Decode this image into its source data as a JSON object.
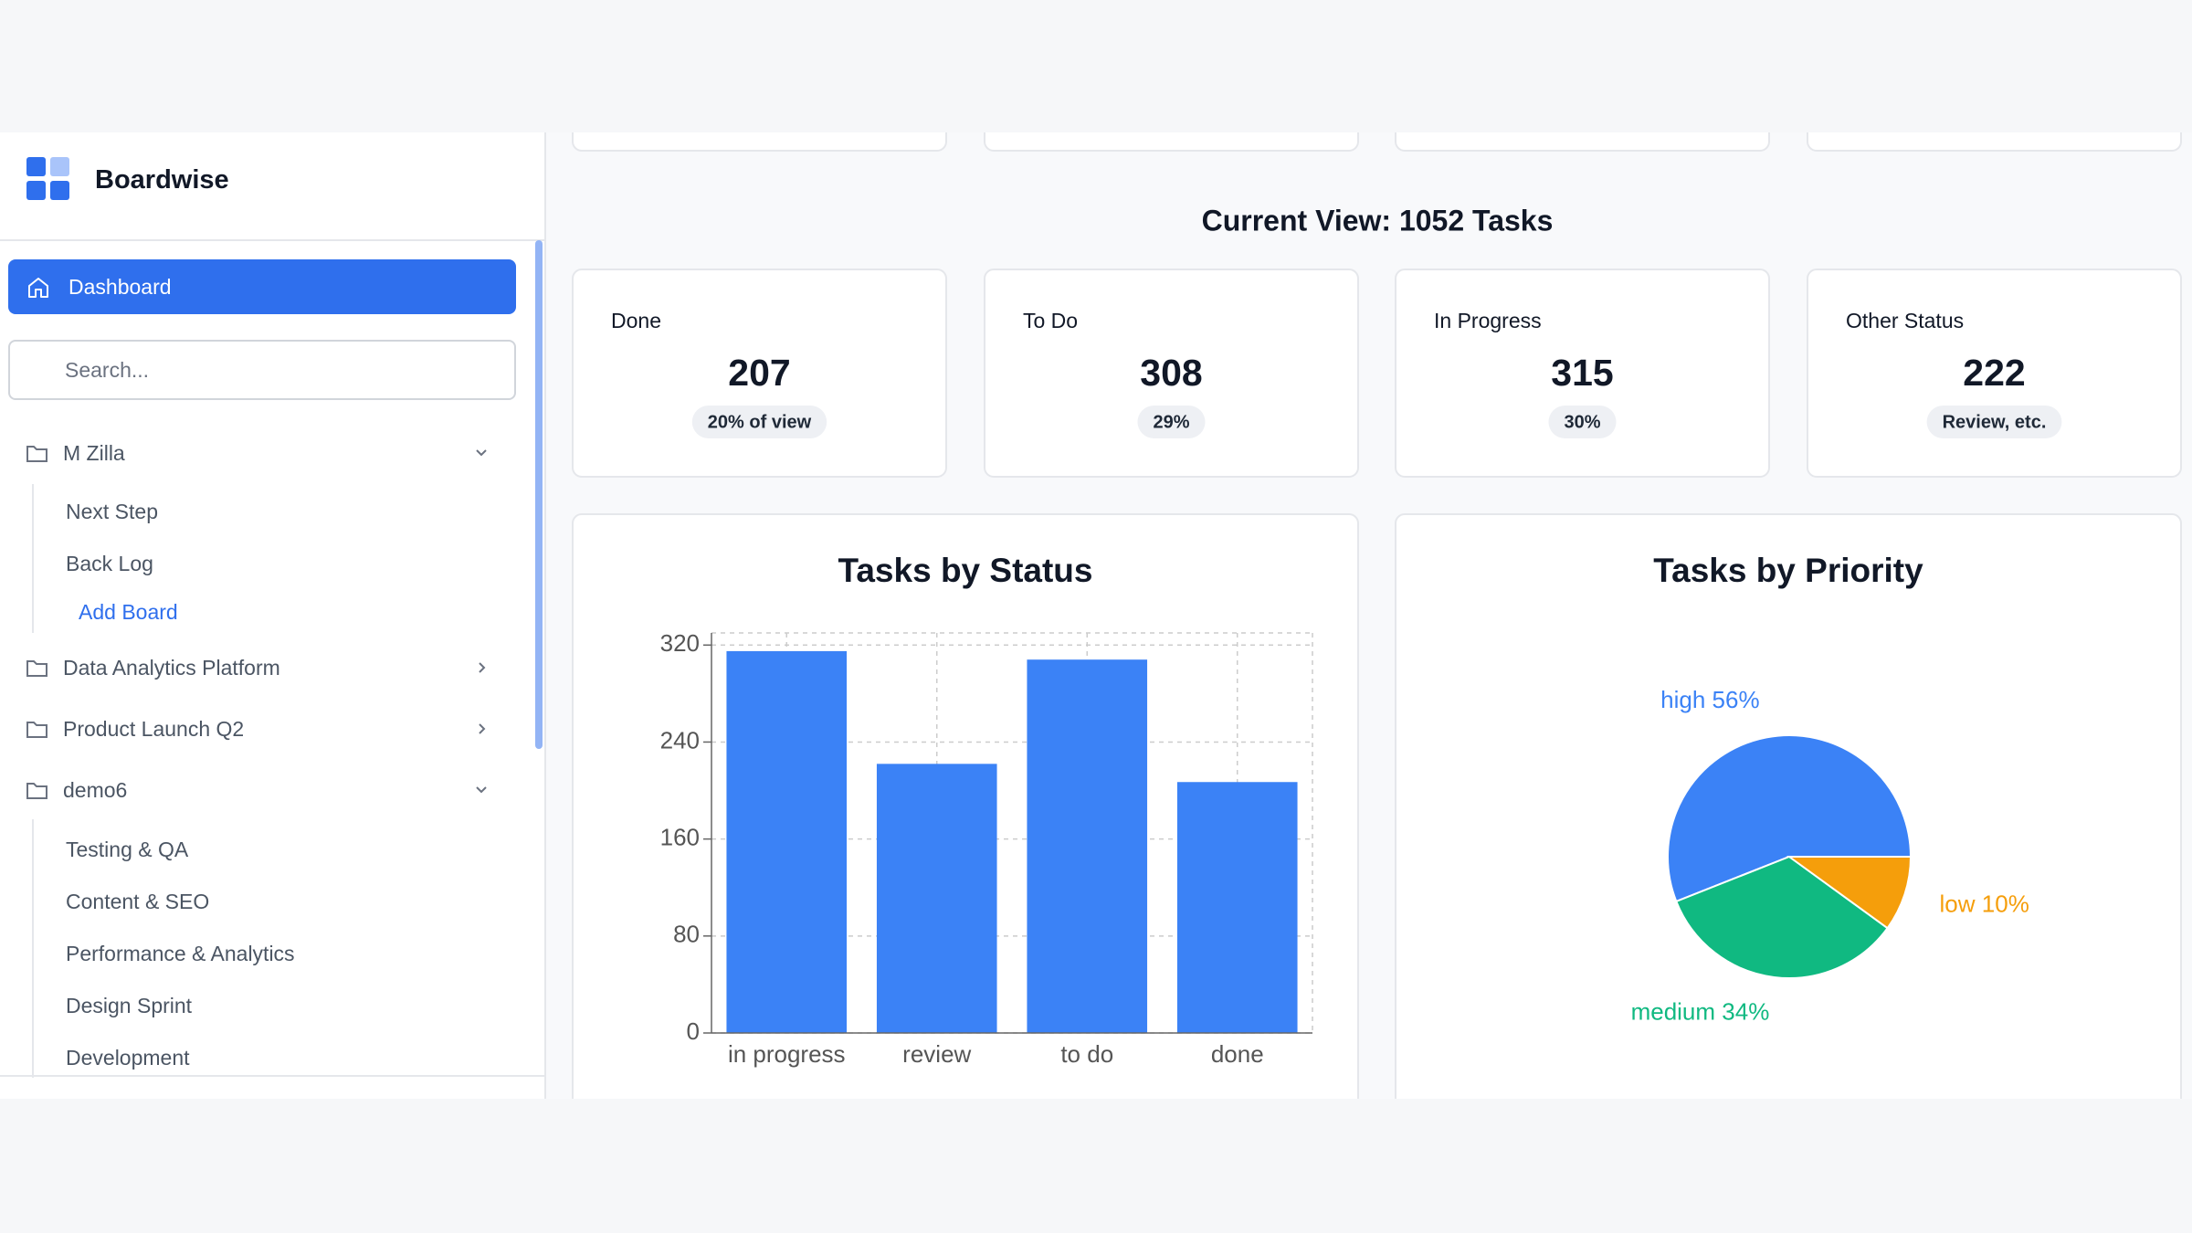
{
  "sidebar": {
    "brand": "Boardwise",
    "nav": "Dashboard",
    "search_placeholder": "Search...",
    "projects": [
      {
        "name": "M Zilla",
        "boards": [
          "Next Step",
          "Back Log"
        ],
        "add": "Add Board"
      },
      {
        "name": "Data Analytics Platform"
      },
      {
        "name": "Product Launch Q2"
      },
      {
        "name": "demo6",
        "boards": [
          "Testing & QA",
          "Content & SEO",
          "Performance & Analytics",
          "Design Sprint",
          "Development"
        ]
      }
    ]
  },
  "heading": "Current View: 1052 Tasks",
  "stats": [
    {
      "label": "Done",
      "value": 207,
      "note": "20% of view"
    },
    {
      "label": "To Do",
      "value": 308,
      "note": "29%"
    },
    {
      "label": "In Progress",
      "value": 315,
      "note": "30%"
    },
    {
      "label": "Other Status",
      "value": 222,
      "note": "Review, etc."
    }
  ],
  "chart_data": [
    {
      "type": "bar",
      "title": "Tasks by Status",
      "categories": [
        "in progress",
        "review",
        "to do",
        "done"
      ],
      "values": [
        315,
        222,
        308,
        207
      ],
      "color": "#3b82f6",
      "ylim": [
        0,
        330
      ],
      "yticks": [
        0,
        80,
        160,
        240,
        320
      ],
      "grid": true
    },
    {
      "type": "pie",
      "title": "Tasks by Priority",
      "categories": [
        "high",
        "medium",
        "low"
      ],
      "values": [
        56,
        34,
        10
      ],
      "value_labels": [
        "high 56%",
        "medium 34%",
        "low 10%"
      ],
      "colors": [
        "#3b82f6",
        "#10b981",
        "#f59e0b"
      ]
    }
  ]
}
